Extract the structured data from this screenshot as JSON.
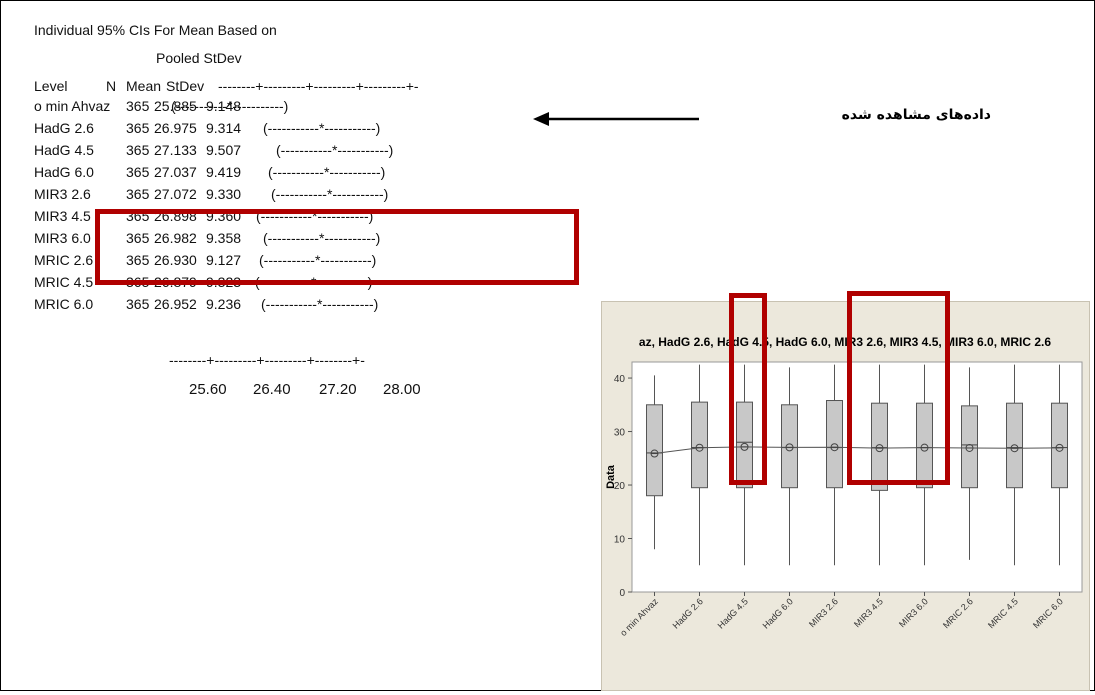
{
  "header": {
    "title_line1": "Individual 95% CIs For Mean Based on",
    "title_line2": "Pooled StDev",
    "col_level": "Level",
    "col_n": "N",
    "col_mean": "Mean",
    "col_stdev": "StDev",
    "col_rule": "--------+---------+---------+---------+-"
  },
  "axis_rule": "--------+---------+---------+--------+-",
  "axis_ticks": [
    "25.60",
    "26.40",
    "27.20",
    "28.00"
  ],
  "rows": [
    {
      "level": "o min Ahvaz",
      "n": "365",
      "mean": "25.885",
      "stdev": "9.148",
      "ci": "(-----------*-----------)"
    },
    {
      "level": "HadG 2.6",
      "n": "365",
      "mean": "26.975",
      "stdev": "9.314",
      "ci": "(-----------*-----------)"
    },
    {
      "level": "HadG 4.5",
      "n": "365",
      "mean": "27.133",
      "stdev": "9.507",
      "ci": "(-----------*-----------)"
    },
    {
      "level": "HadG 6.0",
      "n": "365",
      "mean": "27.037",
      "stdev": "9.419",
      "ci": "(-----------*-----------)"
    },
    {
      "level": "MIR3 2.6",
      "n": "365",
      "mean": "27.072",
      "stdev": "9.330",
      "ci": "(-----------*-----------)"
    },
    {
      "level": "MIR3 4.5",
      "n": "365",
      "mean": "26.898",
      "stdev": "9.360",
      "ci": "(-----------*-----------)"
    },
    {
      "level": "MIR3 6.0",
      "n": "365",
      "mean": "26.982",
      "stdev": "9.358",
      "ci": "(-----------*-----------)"
    },
    {
      "level": "MRIC 2.6",
      "n": "365",
      "mean": "26.930",
      "stdev": "9.127",
      "ci": "(-----------*-----------)"
    },
    {
      "level": "MRIC 4.5",
      "n": "365",
      "mean": "26.879",
      "stdev": "9.323",
      "ci": "(-----------*-----------)"
    },
    {
      "level": "MRIC 6.0",
      "n": "365",
      "mean": "26.952",
      "stdev": "9.236",
      "ci": "(-----------*-----------)"
    }
  ],
  "annotation": {
    "text": "داده‌های مشاهده شده"
  },
  "colors": {
    "highlight": "#b00000",
    "box_fill": "#c8c8c8",
    "panel_bg": "#ece8dc",
    "plot_bg": "#ffffff"
  },
  "chart_data": {
    "type": "box",
    "title": "az, HadG 2.6, HadG 4.5, HadG 6.0, MIR3 2.6, MIR3 4.5, MIR3 6.0, MRIC 2.6",
    "xlabel": "",
    "ylabel": "Data",
    "ylim": [
      0,
      43
    ],
    "yticks": [
      0,
      10,
      20,
      30,
      40
    ],
    "categories": [
      "o min Ahvaz",
      "HadG 2.6",
      "HadG 4.5",
      "HadG 6.0",
      "MIR3 2.6",
      "MIR3 4.5",
      "MIR3 6.0",
      "MRIC 2.6",
      "MRIC 4.5",
      "MRIC 6.0"
    ],
    "whisker_low": [
      8,
      5,
      5,
      5,
      5,
      5,
      5,
      6,
      5,
      5
    ],
    "q1": [
      18,
      19.5,
      19.5,
      19.5,
      19.5,
      19,
      19.5,
      19.5,
      19.5,
      19.5
    ],
    "median": [
      26,
      27,
      28,
      27,
      27,
      27,
      27,
      27.5,
      27,
      27
    ],
    "q3": [
      35,
      35.5,
      35.5,
      35,
      35.8,
      35.3,
      35.3,
      34.8,
      35.3,
      35.3
    ],
    "whisker_high": [
      40.5,
      42.5,
      42.5,
      42,
      42.5,
      42.5,
      42.5,
      42,
      42.5,
      42.5
    ],
    "mean": [
      25.885,
      26.975,
      27.133,
      27.037,
      27.072,
      26.898,
      26.982,
      26.93,
      26.879,
      26.952
    ],
    "ci_scale": {
      "ticks": [
        25.6,
        26.4,
        27.2,
        28.0
      ]
    }
  }
}
